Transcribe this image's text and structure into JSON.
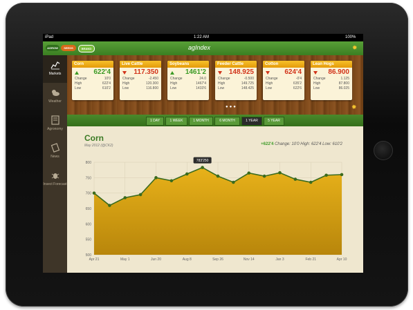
{
  "status": {
    "carrier": "iPad",
    "time": "1:22 AM",
    "battery": "100%"
  },
  "header": {
    "title": "agIndex",
    "logos": [
      "AGROW",
      "SEEDS",
      "BRAND"
    ]
  },
  "sidebar": {
    "items": [
      {
        "label": "Markets",
        "icon": "chart-icon",
        "active": true
      },
      {
        "label": "Weather",
        "icon": "weather-icon",
        "active": false
      },
      {
        "label": "Agronomy",
        "icon": "book-icon",
        "active": false
      },
      {
        "label": "News",
        "icon": "news-icon",
        "active": false
      },
      {
        "label": "Insect Forecast",
        "icon": "insect-icon",
        "active": false
      }
    ]
  },
  "cards": [
    {
      "name": "Corn",
      "price": "622'4",
      "dir": "up",
      "change": "10'0",
      "high": "622'4",
      "low": "610'2"
    },
    {
      "name": "Live Cattle",
      "price": "117.350",
      "dir": "down",
      "change": "-2.450",
      "high": "120.300",
      "low": "116.800"
    },
    {
      "name": "Soybeans",
      "price": "1461'2",
      "dir": "up",
      "change": "24.0",
      "high": "1467'4",
      "low": "1433'6"
    },
    {
      "name": "Feeder Cattle",
      "price": "148.925",
      "dir": "down",
      "change": "-0.500",
      "high": "149.725",
      "low": "148.425"
    },
    {
      "name": "Cotton",
      "price": "624'4",
      "dir": "down",
      "change": "-0'4",
      "high": "635'2",
      "low": "622'6"
    },
    {
      "name": "Lean Hogs",
      "price": "86.900",
      "dir": "down",
      "change": "1.125",
      "high": "87.800",
      "low": "86.025"
    }
  ],
  "labels": {
    "change": "Change",
    "high": "High",
    "low": "Low"
  },
  "tabs": [
    "1 DAY",
    "1 WEEK",
    "1 MONTH",
    "6 MONTH",
    "1 YEAR",
    "5 YEAR"
  ],
  "active_tab": "1 YEAR",
  "chart_header": {
    "title": "Corn",
    "subtitle": "May 2012 (@CK2)",
    "change_value": "+622'4",
    "change_label": "Change:",
    "change": "10'0",
    "high_label": "High:",
    "high": "622'4",
    "low_label": "Low:",
    "low": "610'2"
  },
  "colors": {
    "accent_green": "#3b7f22",
    "gold": "#e5a70c",
    "down_red": "#d2331a",
    "up_green": "#3b9a25",
    "line_green": "#3a6b1e"
  },
  "chart_data": {
    "type": "area",
    "title": "",
    "xlabel": "",
    "ylabel": "",
    "ylim": [
      500,
      800
    ],
    "yticks": [
      800,
      750,
      700,
      650,
      600,
      550,
      500
    ],
    "xticks": [
      "Apr 21",
      "May 1",
      "Jun 20",
      "Aug 8",
      "Sep 26",
      "Nov 14",
      "Jan 3",
      "Feb 21",
      "Apr 10"
    ],
    "values": [
      700,
      660,
      685,
      695,
      750,
      740,
      762,
      783,
      755,
      735,
      765,
      755,
      766,
      745,
      735,
      758,
      760
    ],
    "tooltip": "783'250",
    "grid": true
  }
}
